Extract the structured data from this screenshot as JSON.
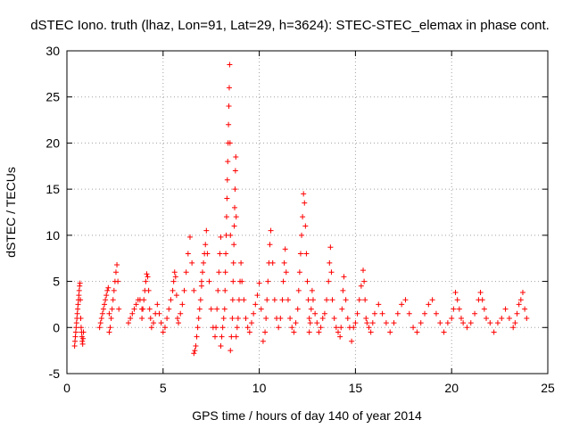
{
  "chart_data": {
    "type": "scatter",
    "title": "dSTEC Iono. truth (lhaz, Lon=91, Lat=29, h=3624): STEC-STEC_elemax in phase cont.",
    "xlabel": "GPS time / hours of day 140 of year 2014",
    "ylabel": "dSTEC  / TECUs",
    "xlim": [
      0,
      25
    ],
    "ylim": [
      -5,
      30
    ],
    "xticks": [
      0,
      5,
      10,
      15,
      20,
      25
    ],
    "yticks": [
      -5,
      0,
      5,
      10,
      15,
      20,
      25,
      30
    ],
    "grid": true,
    "marker": "+",
    "color": "#ff0000",
    "series": [
      {
        "x": [
          0.4,
          0.42,
          0.44,
          0.46,
          0.48,
          0.5,
          0.52,
          0.54,
          0.56,
          0.58,
          0.6,
          0.62,
          0.64,
          0.66,
          0.68,
          0.7,
          0.72,
          0.74,
          0.76,
          0.78,
          0.8,
          0.82,
          0.84,
          0.86,
          1.7,
          1.75,
          1.8,
          1.85,
          1.9,
          1.95,
          2.0,
          2.05,
          2.1,
          2.15,
          2.2,
          2.2,
          2.25,
          2.3,
          2.35,
          2.4,
          2.45,
          2.5,
          2.55,
          2.6,
          2.65,
          2.7,
          3.2,
          3.3,
          3.4,
          3.5,
          3.6,
          3.7,
          3.8,
          3.9,
          3.9,
          3.95,
          4.0,
          4.05,
          4.1,
          4.15,
          4.2,
          4.25,
          4.3,
          4.35,
          4.4,
          4.5,
          4.6,
          4.7,
          4.8,
          4.9,
          5.0,
          5.1,
          5.2,
          5.3,
          5.4,
          5.5,
          5.55,
          5.6,
          5.65,
          5.7,
          5.75,
          5.8,
          5.9,
          6.0,
          6.1,
          6.2,
          6.3,
          6.4,
          6.5,
          6.6,
          6.6,
          6.65,
          6.7,
          6.75,
          6.8,
          6.85,
          6.9,
          6.95,
          7.0,
          7.0,
          7.05,
          7.1,
          7.15,
          7.2,
          7.25,
          7.3,
          7.4,
          7.5,
          7.6,
          7.7,
          7.75,
          7.8,
          7.85,
          7.9,
          7.95,
          8.0,
          8.0,
          8.05,
          8.1,
          8.15,
          8.2,
          8.22,
          8.24,
          8.26,
          8.28,
          8.3,
          8.32,
          8.34,
          8.36,
          8.38,
          8.4,
          8.42,
          8.44,
          8.46,
          8.48,
          8.5,
          8.5,
          8.55,
          8.6,
          8.62,
          8.64,
          8.66,
          8.68,
          8.7,
          8.72,
          8.74,
          8.76,
          8.78,
          8.8,
          8.8,
          8.85,
          8.9,
          8.95,
          9.0,
          9.05,
          9.1,
          9.2,
          9.3,
          9.4,
          9.5,
          9.6,
          9.7,
          9.8,
          9.9,
          10.0,
          10.1,
          10.2,
          10.3,
          10.35,
          10.4,
          10.45,
          10.5,
          10.55,
          10.6,
          10.7,
          10.8,
          10.9,
          11.0,
          11.1,
          11.2,
          11.25,
          11.3,
          11.35,
          11.4,
          11.5,
          11.6,
          11.7,
          11.8,
          11.9,
          12.0,
          12.05,
          12.1,
          12.15,
          12.2,
          12.25,
          12.3,
          12.35,
          12.4,
          12.45,
          12.5,
          12.55,
          12.6,
          12.6,
          12.65,
          12.7,
          12.75,
          12.8,
          12.9,
          13.0,
          13.1,
          13.2,
          13.3,
          13.4,
          13.5,
          13.6,
          13.65,
          13.7,
          13.75,
          13.8,
          13.9,
          14.0,
          14.1,
          14.2,
          14.25,
          14.3,
          14.35,
          14.4,
          14.5,
          14.6,
          14.7,
          14.8,
          14.9,
          15.0,
          15.1,
          15.2,
          15.3,
          15.4,
          15.45,
          15.5,
          15.55,
          15.6,
          15.7,
          15.8,
          15.9,
          16.0,
          16.2,
          16.4,
          16.6,
          16.8,
          17.0,
          17.2,
          17.4,
          17.6,
          17.8,
          18.0,
          18.2,
          18.4,
          18.6,
          18.8,
          19.0,
          19.2,
          19.4,
          19.6,
          19.8,
          20.0,
          20.1,
          20.2,
          20.3,
          20.4,
          20.5,
          20.6,
          20.8,
          21.0,
          21.2,
          21.4,
          21.5,
          21.6,
          21.7,
          21.8,
          22.0,
          22.2,
          22.4,
          22.6,
          22.8,
          23.0,
          23.2,
          23.3,
          23.4,
          23.5,
          23.6,
          23.7,
          23.8,
          23.9
        ],
        "y": [
          -2.0,
          -1.5,
          -1.0,
          -0.5,
          0.0,
          0.5,
          1.0,
          1.5,
          2.0,
          2.5,
          3.0,
          3.5,
          4.0,
          4.5,
          4.8,
          3.0,
          1.0,
          0.0,
          -0.5,
          -1.0,
          -1.5,
          -1.8,
          -1.2,
          -0.5,
          0.0,
          0.5,
          1.0,
          1.5,
          2.0,
          2.5,
          3.0,
          3.5,
          4.0,
          4.3,
          1.5,
          -0.5,
          0.0,
          1.0,
          2.0,
          3.0,
          4.0,
          5.0,
          6.0,
          6.8,
          5.0,
          2.0,
          0.5,
          1.0,
          1.5,
          2.0,
          2.5,
          3.0,
          3.0,
          2.0,
          1.0,
          2.0,
          3.0,
          4.0,
          5.0,
          5.8,
          5.5,
          4.0,
          2.0,
          1.0,
          0.0,
          0.5,
          1.5,
          2.5,
          1.5,
          0.5,
          -0.5,
          0.0,
          1.0,
          2.0,
          3.0,
          4.0,
          5.0,
          6.0,
          5.5,
          3.5,
          1.0,
          0.5,
          1.5,
          2.5,
          4.0,
          6.0,
          8.0,
          9.8,
          7.0,
          4.0,
          -2.8,
          -2.5,
          -2.0,
          -1.0,
          0.0,
          1.0,
          2.0,
          3.0,
          4.5,
          5.0,
          6.0,
          7.0,
          8.0,
          9.0,
          10.5,
          8.0,
          5.0,
          2.0,
          0.0,
          -1.0,
          0.0,
          2.0,
          4.0,
          6.0,
          8.0,
          9.8,
          -2.0,
          -1.0,
          0.0,
          1.0,
          2.0,
          4.0,
          6.0,
          8.0,
          10.0,
          12.0,
          14.0,
          16.0,
          18.0,
          20.0,
          22.0,
          24.0,
          26.0,
          28.5,
          20.0,
          10.0,
          -2.5,
          -1.0,
          1.0,
          3.0,
          5.0,
          7.0,
          9.0,
          11.0,
          13.0,
          15.0,
          17.0,
          18.5,
          12.0,
          -1.0,
          0.0,
          1.0,
          3.0,
          5.0,
          7.0,
          5.0,
          3.0,
          1.0,
          0.0,
          -0.5,
          0.5,
          1.5,
          2.5,
          3.5,
          4.8,
          2.0,
          -1.5,
          -0.5,
          1.0,
          3.0,
          5.0,
          7.0,
          9.0,
          10.5,
          7.0,
          3.0,
          1.0,
          0.0,
          1.0,
          3.0,
          5.0,
          7.0,
          8.5,
          6.0,
          3.0,
          1.0,
          0.0,
          -0.5,
          0.5,
          2.0,
          4.0,
          6.0,
          8.0,
          10.0,
          12.0,
          14.5,
          13.5,
          11.0,
          8.0,
          5.0,
          3.0,
          1.0,
          -0.5,
          0.5,
          2.0,
          4.0,
          3.0,
          1.5,
          0.5,
          -0.5,
          0.0,
          1.0,
          1.5,
          3.0,
          5.0,
          7.0,
          8.7,
          6.0,
          3.0,
          1.0,
          0.0,
          -0.5,
          -1.0,
          0.0,
          2.0,
          4.0,
          5.5,
          3.0,
          1.0,
          0.0,
          -1.5,
          0.0,
          0.5,
          1.5,
          3.0,
          4.5,
          6.2,
          5.0,
          3.0,
          1.0,
          0.5,
          0.0,
          -0.5,
          0.5,
          1.5,
          2.5,
          1.5,
          0.5,
          -0.5,
          0.5,
          1.5,
          2.5,
          3.0,
          1.5,
          0.0,
          -0.5,
          0.5,
          1.5,
          2.5,
          3.0,
          1.5,
          0.5,
          -0.5,
          0.5,
          1.0,
          2.0,
          3.8,
          3.0,
          2.0,
          1.0,
          0.5,
          0.0,
          0.5,
          1.5,
          3.0,
          3.8,
          3.0,
          2.0,
          1.0,
          0.5,
          -0.5,
          0.5,
          1.0,
          2.0,
          1.0,
          0.0,
          0.5,
          1.5,
          2.5,
          3.0,
          3.8,
          2.0,
          1.0
        ]
      }
    ]
  }
}
